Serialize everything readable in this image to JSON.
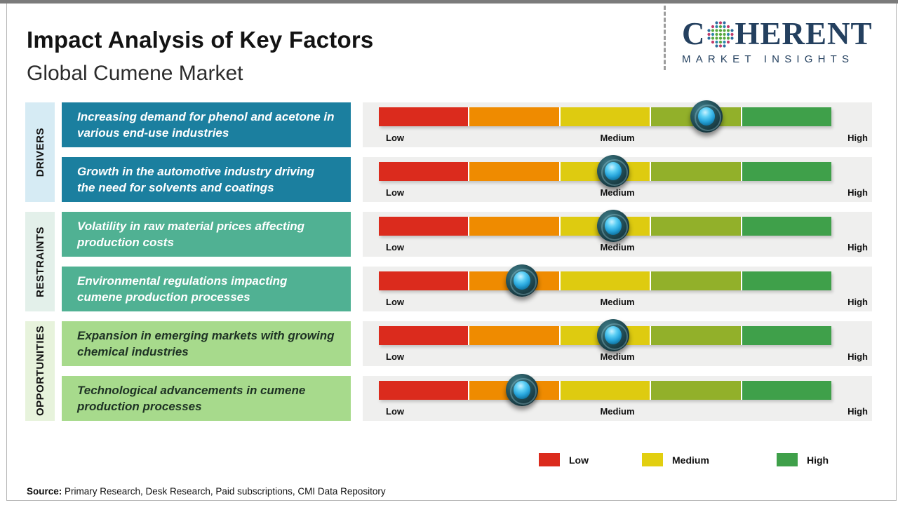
{
  "header": {
    "title": "Impact Analysis of Key Factors",
    "subtitle": "Global Cumene Market"
  },
  "logo": {
    "brand_prefix": "C",
    "brand_suffix": "HERENT",
    "tagline": "MARKET INSIGHTS",
    "brand_color": "#24405F",
    "globe_colors": {
      "outer_a": "#C13A6B",
      "outer_b": "#2C6E9E",
      "mid_a": "#57A83F",
      "mid_b": "#2C86A8",
      "inner": "#57A83F"
    }
  },
  "groups": [
    {
      "label": "DRIVERS",
      "strip_color": "#D6EBF4",
      "box_color": "#1B7F9F",
      "box_text_color": "#FFFFFF"
    },
    {
      "label": "RESTRAINTS",
      "strip_color": "#E3F0EA",
      "box_color": "#50B193",
      "box_text_color": "#FFFFFF"
    },
    {
      "label": "OPPORTUNITIES",
      "strip_color": "#E7F3DC",
      "box_color": "#A7DA8C",
      "box_text_color": "#1E3224"
    }
  ],
  "factors": [
    {
      "group": "DRIVERS",
      "text": "Increasing demand for phenol and acetone in various end-use industries",
      "impact_percent": 72.4,
      "impact_level": "Medium-High"
    },
    {
      "group": "DRIVERS",
      "text": "Growth in the automotive industry driving the need for solvents and coatings",
      "impact_percent": 51.8,
      "impact_level": "Medium"
    },
    {
      "group": "RESTRAINTS",
      "text": "Volatility in raw material prices affecting production costs",
      "impact_percent": 51.8,
      "impact_level": "Medium"
    },
    {
      "group": "RESTRAINTS",
      "text": "Environmental regulations impacting cumene production processes",
      "impact_percent": 31.6,
      "impact_level": "Low-Medium"
    },
    {
      "group": "OPPORTUNITIES",
      "text": "Expansion in emerging markets with growing chemical industries",
      "impact_percent": 51.8,
      "impact_level": "Medium"
    },
    {
      "group": "OPPORTUNITIES",
      "text": "Technological advancements in cumene production processes",
      "impact_percent": 31.6,
      "impact_level": "Low-Medium"
    }
  ],
  "scale": {
    "low": "Low",
    "medium": "Medium",
    "high": "High"
  },
  "bar": {
    "segment_colors": [
      "#DB2B1D",
      "#EF8B00",
      "#DECB10",
      "#92B02A",
      "#3FA04A"
    ],
    "marker_outer_color": "#15353D",
    "marker_inner_color": "#29A7DD"
  },
  "legend": {
    "items": [
      {
        "label": "Low",
        "color": "#DB2B1D"
      },
      {
        "label": "Medium",
        "color": "#E2CF10"
      },
      {
        "label": "High",
        "color": "#3FA04A"
      }
    ]
  },
  "footer": {
    "source_label": "Source:",
    "source_text": " Primary Research, Desk Research, Paid subscriptions, CMI Data Repository"
  }
}
